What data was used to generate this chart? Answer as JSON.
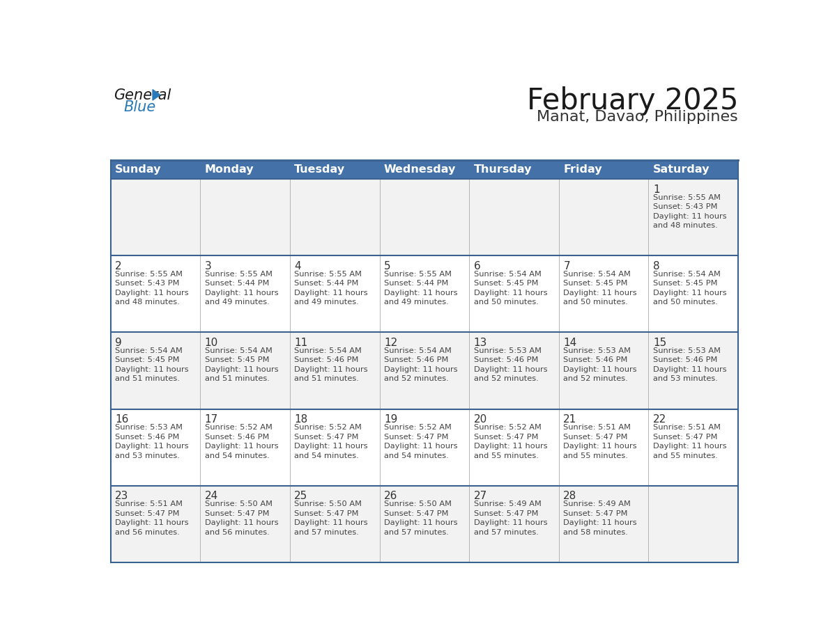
{
  "title": "February 2025",
  "subtitle": "Manat, Davao, Philippines",
  "days_of_week": [
    "Sunday",
    "Monday",
    "Tuesday",
    "Wednesday",
    "Thursday",
    "Friday",
    "Saturday"
  ],
  "header_bg": "#4472A8",
  "header_text": "#FFFFFF",
  "cell_bg_light": "#F2F2F2",
  "cell_bg_white": "#FFFFFF",
  "border_color_dark": "#3A6190",
  "border_color_light": "#AAAAAA",
  "day_text_color": "#333333",
  "info_text_color": "#444444",
  "title_color": "#1a1a1a",
  "subtitle_color": "#333333",
  "logo_general_color": "#1a1a1a",
  "logo_blue_color": "#2979B8",
  "calendar_data": [
    [
      null,
      null,
      null,
      null,
      null,
      null,
      {
        "day": 1,
        "sunrise": "5:55 AM",
        "sunset": "5:43 PM",
        "daylight_l1": "Daylight: 11 hours",
        "daylight_l2": "and 48 minutes."
      }
    ],
    [
      {
        "day": 2,
        "sunrise": "5:55 AM",
        "sunset": "5:43 PM",
        "daylight_l1": "Daylight: 11 hours",
        "daylight_l2": "and 48 minutes."
      },
      {
        "day": 3,
        "sunrise": "5:55 AM",
        "sunset": "5:44 PM",
        "daylight_l1": "Daylight: 11 hours",
        "daylight_l2": "and 49 minutes."
      },
      {
        "day": 4,
        "sunrise": "5:55 AM",
        "sunset": "5:44 PM",
        "daylight_l1": "Daylight: 11 hours",
        "daylight_l2": "and 49 minutes."
      },
      {
        "day": 5,
        "sunrise": "5:55 AM",
        "sunset": "5:44 PM",
        "daylight_l1": "Daylight: 11 hours",
        "daylight_l2": "and 49 minutes."
      },
      {
        "day": 6,
        "sunrise": "5:54 AM",
        "sunset": "5:45 PM",
        "daylight_l1": "Daylight: 11 hours",
        "daylight_l2": "and 50 minutes."
      },
      {
        "day": 7,
        "sunrise": "5:54 AM",
        "sunset": "5:45 PM",
        "daylight_l1": "Daylight: 11 hours",
        "daylight_l2": "and 50 minutes."
      },
      {
        "day": 8,
        "sunrise": "5:54 AM",
        "sunset": "5:45 PM",
        "daylight_l1": "Daylight: 11 hours",
        "daylight_l2": "and 50 minutes."
      }
    ],
    [
      {
        "day": 9,
        "sunrise": "5:54 AM",
        "sunset": "5:45 PM",
        "daylight_l1": "Daylight: 11 hours",
        "daylight_l2": "and 51 minutes."
      },
      {
        "day": 10,
        "sunrise": "5:54 AM",
        "sunset": "5:45 PM",
        "daylight_l1": "Daylight: 11 hours",
        "daylight_l2": "and 51 minutes."
      },
      {
        "day": 11,
        "sunrise": "5:54 AM",
        "sunset": "5:46 PM",
        "daylight_l1": "Daylight: 11 hours",
        "daylight_l2": "and 51 minutes."
      },
      {
        "day": 12,
        "sunrise": "5:54 AM",
        "sunset": "5:46 PM",
        "daylight_l1": "Daylight: 11 hours",
        "daylight_l2": "and 52 minutes."
      },
      {
        "day": 13,
        "sunrise": "5:53 AM",
        "sunset": "5:46 PM",
        "daylight_l1": "Daylight: 11 hours",
        "daylight_l2": "and 52 minutes."
      },
      {
        "day": 14,
        "sunrise": "5:53 AM",
        "sunset": "5:46 PM",
        "daylight_l1": "Daylight: 11 hours",
        "daylight_l2": "and 52 minutes."
      },
      {
        "day": 15,
        "sunrise": "5:53 AM",
        "sunset": "5:46 PM",
        "daylight_l1": "Daylight: 11 hours",
        "daylight_l2": "and 53 minutes."
      }
    ],
    [
      {
        "day": 16,
        "sunrise": "5:53 AM",
        "sunset": "5:46 PM",
        "daylight_l1": "Daylight: 11 hours",
        "daylight_l2": "and 53 minutes."
      },
      {
        "day": 17,
        "sunrise": "5:52 AM",
        "sunset": "5:46 PM",
        "daylight_l1": "Daylight: 11 hours",
        "daylight_l2": "and 54 minutes."
      },
      {
        "day": 18,
        "sunrise": "5:52 AM",
        "sunset": "5:47 PM",
        "daylight_l1": "Daylight: 11 hours",
        "daylight_l2": "and 54 minutes."
      },
      {
        "day": 19,
        "sunrise": "5:52 AM",
        "sunset": "5:47 PM",
        "daylight_l1": "Daylight: 11 hours",
        "daylight_l2": "and 54 minutes."
      },
      {
        "day": 20,
        "sunrise": "5:52 AM",
        "sunset": "5:47 PM",
        "daylight_l1": "Daylight: 11 hours",
        "daylight_l2": "and 55 minutes."
      },
      {
        "day": 21,
        "sunrise": "5:51 AM",
        "sunset": "5:47 PM",
        "daylight_l1": "Daylight: 11 hours",
        "daylight_l2": "and 55 minutes."
      },
      {
        "day": 22,
        "sunrise": "5:51 AM",
        "sunset": "5:47 PM",
        "daylight_l1": "Daylight: 11 hours",
        "daylight_l2": "and 55 minutes."
      }
    ],
    [
      {
        "day": 23,
        "sunrise": "5:51 AM",
        "sunset": "5:47 PM",
        "daylight_l1": "Daylight: 11 hours",
        "daylight_l2": "and 56 minutes."
      },
      {
        "day": 24,
        "sunrise": "5:50 AM",
        "sunset": "5:47 PM",
        "daylight_l1": "Daylight: 11 hours",
        "daylight_l2": "and 56 minutes."
      },
      {
        "day": 25,
        "sunrise": "5:50 AM",
        "sunset": "5:47 PM",
        "daylight_l1": "Daylight: 11 hours",
        "daylight_l2": "and 57 minutes."
      },
      {
        "day": 26,
        "sunrise": "5:50 AM",
        "sunset": "5:47 PM",
        "daylight_l1": "Daylight: 11 hours",
        "daylight_l2": "and 57 minutes."
      },
      {
        "day": 27,
        "sunrise": "5:49 AM",
        "sunset": "5:47 PM",
        "daylight_l1": "Daylight: 11 hours",
        "daylight_l2": "and 57 minutes."
      },
      {
        "day": 28,
        "sunrise": "5:49 AM",
        "sunset": "5:47 PM",
        "daylight_l1": "Daylight: 11 hours",
        "daylight_l2": "and 58 minutes."
      },
      null
    ]
  ]
}
